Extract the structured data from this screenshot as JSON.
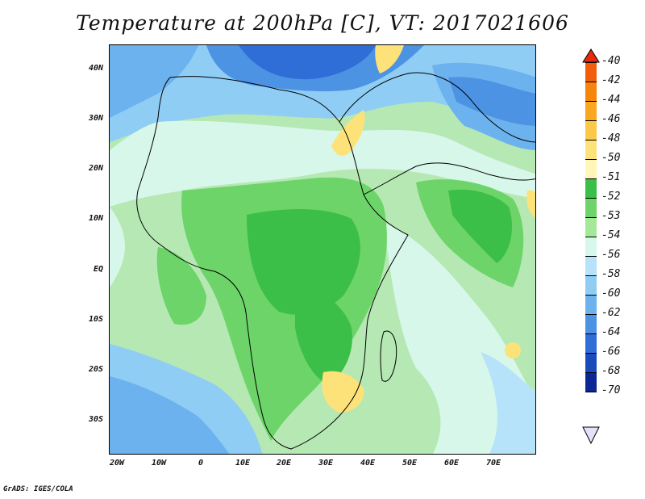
{
  "title": "Temperature at 200hPa [C], VT: 2017021606",
  "credit": "GrADS: IGES/COLA",
  "lat_labels": [
    "40N",
    "30N",
    "20N",
    "10N",
    "EQ",
    "10S",
    "20S",
    "30S"
  ],
  "lon_labels": [
    "20W",
    "10W",
    "0",
    "10E",
    "20E",
    "30E",
    "40E",
    "50E",
    "60E",
    "70E"
  ],
  "colorbar": {
    "labels": [
      "-40",
      "-42",
      "-44",
      "-46",
      "-48",
      "-50",
      "-51",
      "-52",
      "-53",
      "-54",
      "-56",
      "-58",
      "-60",
      "-62",
      "-64",
      "-66",
      "-68",
      "-70"
    ],
    "colors": [
      "#e8290a",
      "#f25c0a",
      "#f6850e",
      "#f9a71e",
      "#fbc94a",
      "#fde27a",
      "#fff6b8",
      "#3cbf48",
      "#6dd46a",
      "#a4e89a",
      "#d7f7ea",
      "#b7e3fa",
      "#90cdf5",
      "#6cb2ee",
      "#4d93e4",
      "#2f6ed6",
      "#1a4bbd",
      "#0c2795",
      "#060a6e"
    ]
  },
  "colors": {
    "outline": "#000000",
    "ocean_cold": "#90cdf5",
    "land_green": "#6dd46a"
  }
}
